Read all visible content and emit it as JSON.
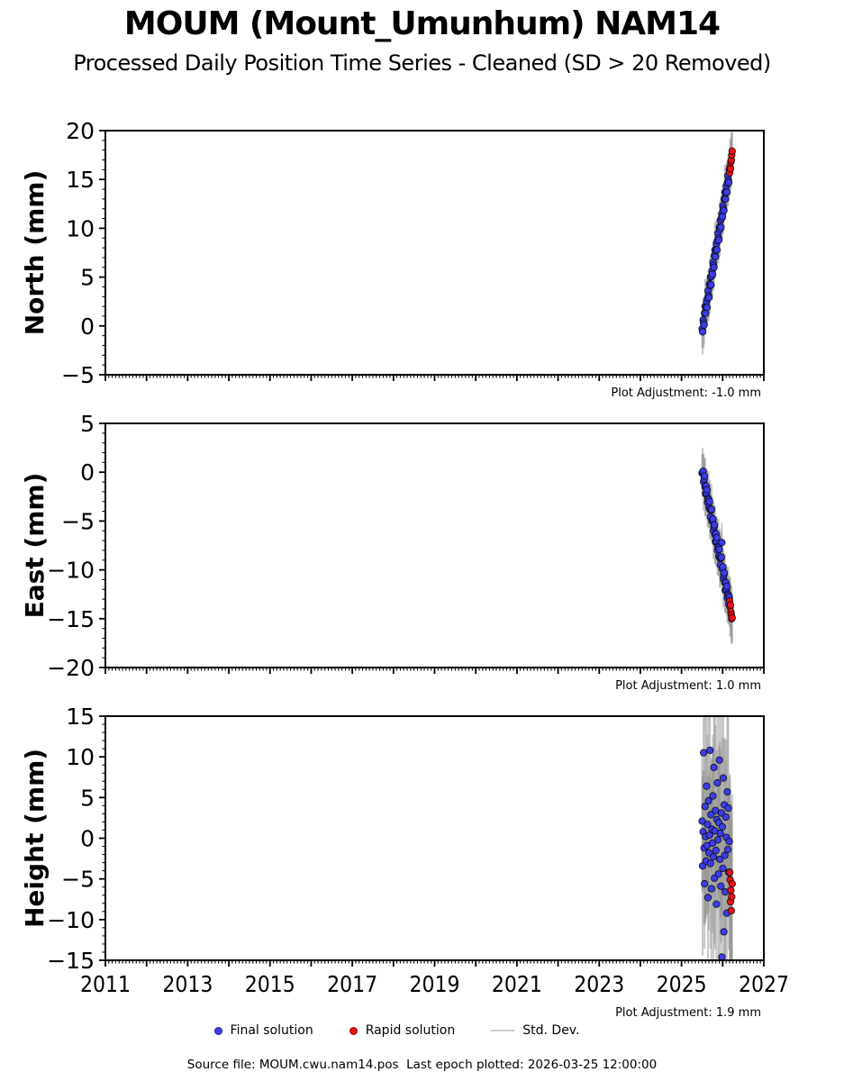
{
  "header": {
    "title": "MOUM (Mount_Umunhum) NAM14",
    "subtitle": "Processed Daily Position Time Series - Cleaned (SD > 20 Removed)"
  },
  "legend": {
    "items": [
      {
        "label": "Final solution",
        "marker": "dot",
        "color": "#3c3ce8"
      },
      {
        "label": "Rapid solution",
        "marker": "dot",
        "color": "#e81212"
      },
      {
        "label": "Std. Dev.",
        "marker": "line",
        "color": "#c9c9c9"
      }
    ]
  },
  "footer": {
    "text": "Source file: MOUM.cwu.nam14.pos  Last epoch plotted: 2026-03-25 12:00:00"
  },
  "chart_data": {
    "type": "scatter",
    "title": "MOUM (Mount_Umunhum) NAM14",
    "subtitle": "Processed Daily Position Time Series - Cleaned (SD > 20 Removed)",
    "x_axis": {
      "min": 2011,
      "max": 2027,
      "major_tick_step_years": 1,
      "minor_ticks_per_year": 12,
      "tick_labels": [
        "2011",
        "2013",
        "2015",
        "2017",
        "2019",
        "2021",
        "2023",
        "2025",
        "2027"
      ]
    },
    "colors": {
      "final_solution": "#3c3ce8",
      "rapid_solution": "#e81212",
      "marker_edge": "#000000",
      "stddev": "#909090",
      "axis": "#000000"
    },
    "t_final": [
      2025.5,
      2025.512,
      2025.524,
      2025.536,
      2025.548,
      2025.56,
      2025.572,
      2025.584,
      2025.596,
      2025.608,
      2025.62,
      2025.632,
      2025.644,
      2025.656,
      2025.668,
      2025.68,
      2025.692,
      2025.704,
      2025.716,
      2025.728,
      2025.74,
      2025.752,
      2025.764,
      2025.776,
      2025.788,
      2025.8,
      2025.812,
      2025.824,
      2025.836,
      2025.848,
      2025.86,
      2025.872,
      2025.884,
      2025.896,
      2025.908,
      2025.92,
      2025.932,
      2025.944,
      2025.956,
      2025.968,
      2025.98,
      2025.992,
      2026.004,
      2026.016,
      2026.028,
      2026.04,
      2026.052,
      2026.064,
      2026.076,
      2026.088,
      2026.1,
      2026.112,
      2026.124,
      2026.136,
      2026.148,
      2026.16
    ],
    "t_rapid": [
      2026.17,
      2026.18,
      2026.19,
      2026.2,
      2026.21,
      2026.22,
      2026.23
    ],
    "panels": [
      {
        "id": "north",
        "ylabel": "North (mm)",
        "ymin": -5,
        "ymax": 20,
        "y_major_step": 5,
        "y_minor_step": 1,
        "y_tick_labels": [
          "20",
          "15",
          "10",
          "5",
          "0",
          "−5"
        ],
        "adjustment_label": "Plot Adjustment: -1.0 mm",
        "show_x_tick_labels": false,
        "series": {
          "final": {
            "v": [
              -0.3,
              -0.6,
              0.6,
              0.3,
              0.1,
              1.3,
              2.0,
              1.3,
              1.9,
              2.5,
              1.9,
              2.8,
              3.6,
              3.1,
              2.9,
              4.3,
              4.1,
              5.0,
              4.2,
              5.1,
              5.6,
              5.3,
              6.5,
              6.2,
              6.0,
              7.2,
              7.8,
              7.1,
              7.7,
              8.4,
              7.8,
              8.7,
              9.5,
              9.0,
              8.8,
              10.1,
              9.9,
              10.8,
              10.1,
              11.0,
              11.5,
              11.2,
              12.3,
              12.0,
              11.8,
              13.0,
              13.7,
              13.0,
              13.6,
              14.3,
              13.7,
              14.6,
              15.4,
              14.9,
              14.7,
              16.0
            ],
            "sigma_pattern": [
              1.9,
              2.3,
              1.6,
              2.6,
              2.0,
              1.7,
              2.8,
              2.2,
              1.5,
              2.4
            ]
          },
          "rapid": {
            "v": [
              15.7,
              16.3,
              16.1,
              16.8,
              17.0,
              17.5,
              17.9
            ],
            "sigma_pattern": [
              2.4,
              2.8,
              2.2
            ]
          }
        }
      },
      {
        "id": "east",
        "ylabel": "East (mm)",
        "ymin": -20,
        "ymax": 5,
        "y_major_step": 5,
        "y_minor_step": 1,
        "y_tick_labels": [
          "5",
          "0",
          "−5",
          "−10",
          "−15",
          "−20"
        ],
        "adjustment_label": "Plot Adjustment: 1.0 mm",
        "show_x_tick_labels": false,
        "series": {
          "final": {
            "v": [
              -0.1,
              0.0,
              0.1,
              -1.0,
              -0.7,
              -0.4,
              -1.5,
              -2.2,
              -1.4,
              -2.2,
              -1.8,
              -3.1,
              -2.7,
              -2.8,
              -3.6,
              -3.0,
              -3.8,
              -4.6,
              -3.9,
              -3.8,
              -5.0,
              -5.0,
              -4.8,
              -6.0,
              -5.6,
              -5.4,
              -6.4,
              -7.1,
              -6.3,
              -7.1,
              -6.7,
              -8.0,
              -7.6,
              -7.7,
              -8.6,
              -7.9,
              -8.8,
              -9.5,
              -8.8,
              -8.7,
              -7.2,
              -9.9,
              -9.7,
              -10.9,
              -10.5,
              -10.3,
              -11.3,
              -12.1,
              -11.3,
              -12.0,
              -11.7,
              -12.9,
              -12.5,
              -12.6,
              -13.5,
              -12.8
            ],
            "sigma_pattern": [
              2.0,
              2.5,
              1.7,
              2.9,
              2.1,
              1.8,
              3.0,
              2.3,
              1.6,
              2.6
            ]
          },
          "rapid": {
            "v": [
              -13.2,
              -13.8,
              -13.6,
              -14.3,
              -14.6,
              -15.0,
              -14.9
            ],
            "sigma_pattern": [
              2.6,
              3.0,
              2.3
            ]
          }
        }
      },
      {
        "id": "height",
        "ylabel": "Height (mm)",
        "ymin": -15,
        "ymax": 15,
        "y_major_step": 5,
        "y_minor_step": 1,
        "y_tick_labels": [
          "15",
          "10",
          "5",
          "0",
          "−5",
          "−10",
          "−15"
        ],
        "adjustment_label": "Plot Adjustment: 1.9 mm",
        "show_x_tick_labels": true,
        "series": {
          "final": {
            "v": [
              2.1,
              -3.4,
              0.8,
              10.5,
              -1.2,
              -5.6,
              3.9,
              0.2,
              -2.8,
              6.4,
              -0.9,
              1.7,
              -7.3,
              4.6,
              -1.8,
              0.4,
              10.8,
              -3.1,
              2.9,
              -6.2,
              1.1,
              -0.6,
              5.2,
              -2.3,
              8.7,
              -4.9,
              0.9,
              3.4,
              -1.5,
              -8.1,
              2.3,
              6.8,
              -0.2,
              -4.4,
              1.9,
              9.6,
              -2.6,
              0.6,
              -5.9,
              3.1,
              -14.6,
              1.4,
              -3.7,
              7.4,
              -11.5,
              4.1,
              -2.1,
              -6.6,
              2.6,
              0.1,
              -9.2,
              5.7,
              -1.4,
              3.7,
              -4.2,
              -0.4
            ],
            "sigma_pattern": [
              8.5,
              11.0,
              7.5,
              13.5,
              9.5,
              8.0,
              14.5,
              10.5,
              7.0,
              12.0
            ]
          },
          "rapid": {
            "v": [
              -4.2,
              -5.1,
              -7.8,
              -6.4,
              -8.9,
              -7.2,
              -5.6
            ],
            "sigma_pattern": [
              11.0,
              13.0,
              9.5
            ]
          }
        }
      }
    ]
  }
}
